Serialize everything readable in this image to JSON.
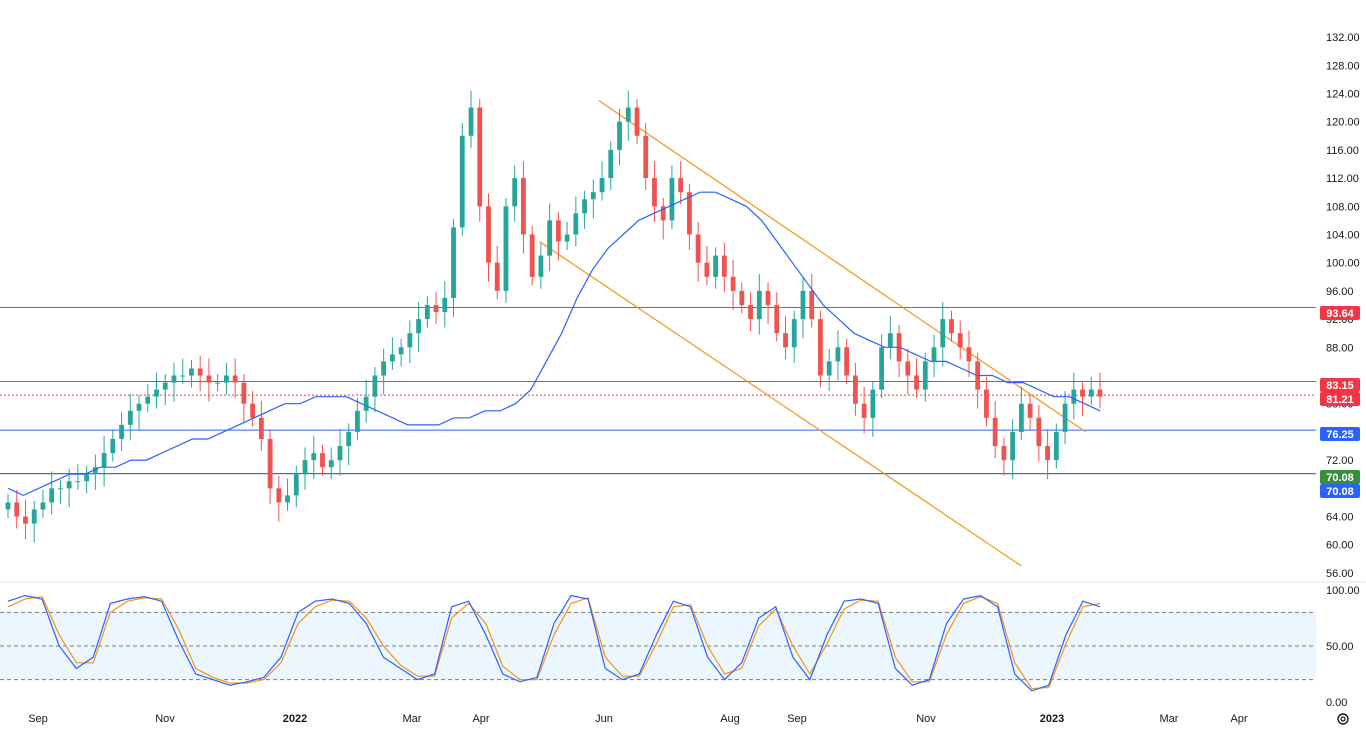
{
  "chart_data": {
    "type": "candlestick",
    "main_panel": {
      "y_ticks": [
        "132.00",
        "128.00",
        "124.00",
        "120.00",
        "116.00",
        "112.00",
        "108.00",
        "104.00",
        "100.00",
        "96.00",
        "92.00",
        "88.00",
        "80.00",
        "72.00",
        "68.00",
        "64.00",
        "60.00",
        "56.00"
      ],
      "ylim": [
        55,
        133
      ],
      "x_ticks": [
        "Sep",
        "Nov",
        "2022",
        "Mar",
        "Apr",
        "Jun",
        "Aug",
        "Sep",
        "Nov",
        "2023",
        "Mar",
        "Apr"
      ],
      "candles_close": [
        66,
        64,
        63,
        65,
        66,
        68,
        68,
        69,
        69,
        70,
        71,
        73,
        75,
        77,
        79,
        80,
        81,
        82,
        83,
        84,
        84,
        85,
        84,
        83,
        83,
        84,
        83,
        80,
        78,
        75,
        68,
        66,
        67,
        70,
        72,
        73,
        71,
        72,
        74,
        76,
        79,
        81,
        84,
        86,
        87,
        88,
        90,
        92,
        94,
        93,
        95,
        105,
        118,
        122,
        108,
        100,
        96,
        108,
        112,
        104,
        98,
        101,
        106,
        103,
        104,
        107,
        109,
        110,
        112,
        116,
        120,
        122,
        118,
        112,
        108,
        106,
        112,
        110,
        104,
        100,
        98,
        101,
        98,
        96,
        94,
        92,
        96,
        94,
        90,
        88,
        92,
        96,
        92,
        84,
        86,
        88,
        84,
        80,
        78,
        82,
        88,
        90,
        86,
        84,
        82,
        86,
        88,
        92,
        90,
        88,
        86,
        82,
        78,
        74,
        72,
        76,
        80,
        78,
        74,
        72,
        76,
        80,
        82,
        81,
        82,
        81
      ],
      "moving_average": [
        68,
        67,
        68,
        69,
        70,
        70,
        71,
        71,
        72,
        72,
        73,
        74,
        75,
        75,
        76,
        77,
        78,
        79,
        80,
        80,
        81,
        81,
        81,
        80,
        79,
        78,
        77,
        77,
        77,
        78,
        78,
        79,
        79,
        80,
        82,
        86,
        90,
        95,
        99,
        102,
        104,
        106,
        107,
        108,
        109,
        110,
        110,
        109,
        108,
        106,
        103,
        100,
        97,
        94,
        92,
        90,
        89,
        88,
        88,
        87,
        86,
        86,
        85,
        84,
        84,
        83,
        83,
        82,
        81,
        81,
        80,
        79
      ],
      "horizontal_levels": [
        {
          "value": 93.64,
          "label": "93.64",
          "color": "#f23645"
        },
        {
          "value": 83.15,
          "label": "83.15",
          "color": "#f23645"
        },
        {
          "value": 81.21,
          "label": "81.21",
          "color": "#f23645"
        },
        {
          "value": 76.25,
          "label": "76.25",
          "color": "#2962ff"
        },
        {
          "value": 70.08,
          "label": "70.08",
          "color": "#388e3c"
        },
        {
          "value": 70.08,
          "label": "70.08",
          "color": "#2962ff"
        }
      ],
      "channel_upper": [
        [
          0.455,
          123.0
        ],
        [
          0.825,
          76.0
        ]
      ],
      "channel_lower": [
        [
          0.41,
          103.0
        ],
        [
          0.776,
          57.0
        ]
      ]
    },
    "oscillator_panel": {
      "y_ticks": [
        "100.00",
        "50.00",
        "0.00"
      ],
      "ylim": [
        0,
        100
      ],
      "band_upper": 80,
      "band_lower": 20,
      "k_line": [
        90,
        95,
        92,
        50,
        30,
        40,
        88,
        92,
        94,
        90,
        55,
        25,
        20,
        15,
        18,
        22,
        40,
        80,
        90,
        92,
        88,
        70,
        40,
        30,
        20,
        25,
        85,
        90,
        60,
        25,
        18,
        22,
        70,
        95,
        92,
        30,
        20,
        25,
        60,
        90,
        85,
        40,
        20,
        35,
        75,
        85,
        40,
        20,
        60,
        90,
        92,
        88,
        30,
        15,
        20,
        70,
        92,
        95,
        85,
        25,
        10,
        15,
        60,
        90,
        85
      ],
      "d_line": [
        85,
        92,
        94,
        60,
        35,
        35,
        80,
        90,
        93,
        92,
        65,
        30,
        22,
        17,
        17,
        20,
        35,
        70,
        85,
        91,
        90,
        75,
        50,
        33,
        23,
        23,
        75,
        88,
        70,
        32,
        20,
        20,
        60,
        88,
        93,
        40,
        23,
        23,
        52,
        85,
        87,
        50,
        25,
        30,
        68,
        83,
        50,
        25,
        52,
        83,
        91,
        90,
        40,
        18,
        18,
        60,
        88,
        94,
        88,
        35,
        12,
        13,
        52,
        85,
        88
      ]
    },
    "colors": {
      "up": "#26a69a",
      "down": "#ef5350",
      "ma": "#2962ff",
      "channel": "#f7931a",
      "stoch_k": "#2962ff",
      "stoch_d": "#f7931a",
      "band_fill": "#e3f2fd"
    }
  },
  "ui": {
    "settings_icon": "gear-icon"
  }
}
